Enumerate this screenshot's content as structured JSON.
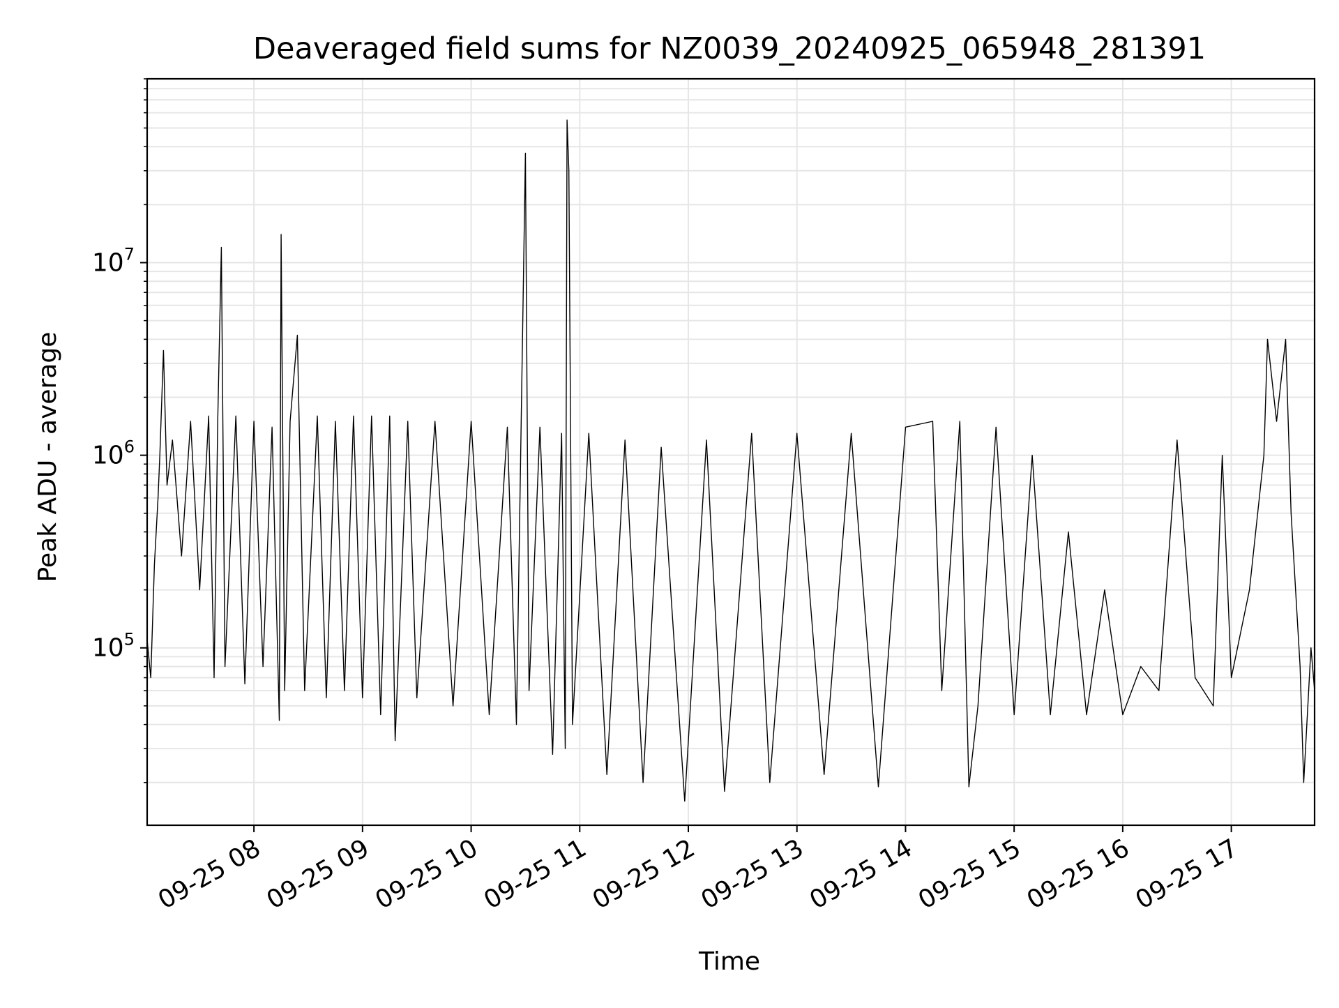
{
  "chart_data": {
    "type": "line",
    "title": "Deaveraged field sums for NZ0039_20240925_065948_281391",
    "xlabel": "Time",
    "ylabel": "Peak ADU - average",
    "yscale": "log",
    "ylim": [
      12000,
      90000000
    ],
    "xlim": [
      "2024-09-25 07:01",
      "2024-09-25 17:46"
    ],
    "grid": true,
    "colors": {
      "line": "#000000",
      "grid": "#e6e6e6",
      "axes": "#000000"
    },
    "x_ticks": [
      {
        "label": "09-25 08",
        "value": "2024-09-25 08:00"
      },
      {
        "label": "09-25 09",
        "value": "2024-09-25 09:00"
      },
      {
        "label": "09-25 10",
        "value": "2024-09-25 10:00"
      },
      {
        "label": "09-25 11",
        "value": "2024-09-25 11:00"
      },
      {
        "label": "09-25 12",
        "value": "2024-09-25 12:00"
      },
      {
        "label": "09-25 13",
        "value": "2024-09-25 13:00"
      },
      {
        "label": "09-25 14",
        "value": "2024-09-25 14:00"
      },
      {
        "label": "09-25 15",
        "value": "2024-09-25 15:00"
      },
      {
        "label": "09-25 16",
        "value": "2024-09-25 16:00"
      },
      {
        "label": "09-25 17",
        "value": "2024-09-25 17:00"
      }
    ],
    "y_ticks": [
      {
        "base": "10",
        "exp": "5",
        "value": 100000
      },
      {
        "base": "10",
        "exp": "6",
        "value": 1000000
      },
      {
        "base": "10",
        "exp": "7",
        "value": 10000000
      }
    ],
    "series": [
      {
        "points": [
          [
            "2024-09-25 07:01",
            110000
          ],
          [
            "2024-09-25 07:03",
            70000
          ],
          [
            "2024-09-25 07:05",
            270000
          ],
          [
            "2024-09-25 07:07",
            600000
          ],
          [
            "2024-09-25 07:08",
            1000000
          ],
          [
            "2024-09-25 07:10",
            3500000
          ],
          [
            "2024-09-25 07:12",
            700000
          ],
          [
            "2024-09-25 07:15",
            1200000
          ],
          [
            "2024-09-25 07:20",
            300000
          ],
          [
            "2024-09-25 07:25",
            1500000
          ],
          [
            "2024-09-25 07:30",
            200000
          ],
          [
            "2024-09-25 07:35",
            1600000
          ],
          [
            "2024-09-25 07:38",
            70000
          ],
          [
            "2024-09-25 07:40",
            1500000
          ],
          [
            "2024-09-25 07:42",
            12000000
          ],
          [
            "2024-09-25 07:44",
            80000
          ],
          [
            "2024-09-25 07:50",
            1600000
          ],
          [
            "2024-09-25 07:55",
            65000
          ],
          [
            "2024-09-25 08:00",
            1500000
          ],
          [
            "2024-09-25 08:05",
            80000
          ],
          [
            "2024-09-25 08:10",
            1400000
          ],
          [
            "2024-09-25 08:14",
            42000
          ],
          [
            "2024-09-25 08:15",
            14000000
          ],
          [
            "2024-09-25 08:17",
            60000
          ],
          [
            "2024-09-25 08:20",
            1500000
          ],
          [
            "2024-09-25 08:24",
            4200000
          ],
          [
            "2024-09-25 08:28",
            60000
          ],
          [
            "2024-09-25 08:35",
            1600000
          ],
          [
            "2024-09-25 08:40",
            55000
          ],
          [
            "2024-09-25 08:45",
            1500000
          ],
          [
            "2024-09-25 08:50",
            60000
          ],
          [
            "2024-09-25 08:55",
            1600000
          ],
          [
            "2024-09-25 09:00",
            55000
          ],
          [
            "2024-09-25 09:05",
            1600000
          ],
          [
            "2024-09-25 09:10",
            45000
          ],
          [
            "2024-09-25 09:15",
            1600000
          ],
          [
            "2024-09-25 09:18",
            33000
          ],
          [
            "2024-09-25 09:25",
            1500000
          ],
          [
            "2024-09-25 09:30",
            55000
          ],
          [
            "2024-09-25 09:40",
            1500000
          ],
          [
            "2024-09-25 09:50",
            50000
          ],
          [
            "2024-09-25 10:00",
            1500000
          ],
          [
            "2024-09-25 10:10",
            45000
          ],
          [
            "2024-09-25 10:20",
            1400000
          ],
          [
            "2024-09-25 10:25",
            40000
          ],
          [
            "2024-09-25 10:30",
            37000000
          ],
          [
            "2024-09-25 10:32",
            60000
          ],
          [
            "2024-09-25 10:38",
            1400000
          ],
          [
            "2024-09-25 10:45",
            28000
          ],
          [
            "2024-09-25 10:50",
            1300000
          ],
          [
            "2024-09-25 10:52",
            30000
          ],
          [
            "2024-09-25 10:53",
            55000000
          ],
          [
            "2024-09-25 10:54",
            30000000
          ],
          [
            "2024-09-25 10:56",
            40000
          ],
          [
            "2024-09-25 11:05",
            1300000
          ],
          [
            "2024-09-25 11:15",
            22000
          ],
          [
            "2024-09-25 11:25",
            1200000
          ],
          [
            "2024-09-25 11:35",
            20000
          ],
          [
            "2024-09-25 11:45",
            1100000
          ],
          [
            "2024-09-25 11:58",
            16000
          ],
          [
            "2024-09-25 12:10",
            1200000
          ],
          [
            "2024-09-25 12:20",
            18000
          ],
          [
            "2024-09-25 12:35",
            1300000
          ],
          [
            "2024-09-25 12:45",
            20000
          ],
          [
            "2024-09-25 13:00",
            1300000
          ],
          [
            "2024-09-25 13:15",
            22000
          ],
          [
            "2024-09-25 13:30",
            1300000
          ],
          [
            "2024-09-25 13:45",
            19000
          ],
          [
            "2024-09-25 14:00",
            1400000
          ],
          [
            "2024-09-25 14:15",
            1500000
          ],
          [
            "2024-09-25 14:20",
            60000
          ],
          [
            "2024-09-25 14:30",
            1500000
          ],
          [
            "2024-09-25 14:35",
            19000
          ],
          [
            "2024-09-25 14:40",
            50000
          ],
          [
            "2024-09-25 14:50",
            1400000
          ],
          [
            "2024-09-25 15:00",
            45000
          ],
          [
            "2024-09-25 15:10",
            1000000
          ],
          [
            "2024-09-25 15:20",
            45000
          ],
          [
            "2024-09-25 15:30",
            400000
          ],
          [
            "2024-09-25 15:40",
            45000
          ],
          [
            "2024-09-25 15:50",
            200000
          ],
          [
            "2024-09-25 16:00",
            45000
          ],
          [
            "2024-09-25 16:10",
            80000
          ],
          [
            "2024-09-25 16:20",
            60000
          ],
          [
            "2024-09-25 16:30",
            1200000
          ],
          [
            "2024-09-25 16:40",
            70000
          ],
          [
            "2024-09-25 16:50",
            50000
          ],
          [
            "2024-09-25 16:55",
            1000000
          ],
          [
            "2024-09-25 17:00",
            70000
          ],
          [
            "2024-09-25 17:10",
            200000
          ],
          [
            "2024-09-25 17:18",
            1000000
          ],
          [
            "2024-09-25 17:20",
            4000000
          ],
          [
            "2024-09-25 17:25",
            1500000
          ],
          [
            "2024-09-25 17:30",
            4000000
          ],
          [
            "2024-09-25 17:33",
            500000
          ],
          [
            "2024-09-25 17:38",
            80000
          ],
          [
            "2024-09-25 17:40",
            20000
          ],
          [
            "2024-09-25 17:44",
            100000
          ],
          [
            "2024-09-25 17:46",
            60000
          ]
        ]
      }
    ]
  }
}
